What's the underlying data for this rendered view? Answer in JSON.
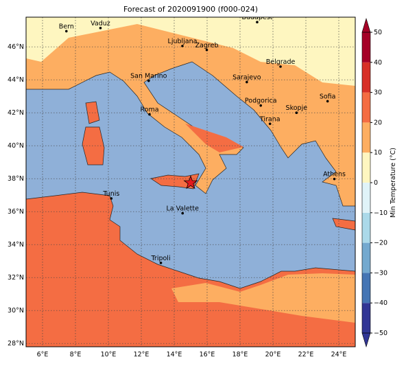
{
  "map": {
    "title": "Forecast of 2020091900 (f000-024)",
    "xlim": [
      5,
      25
    ],
    "ylim": [
      27.8,
      47.8
    ],
    "xticks": [
      {
        "value": 6,
        "label": "6°E"
      },
      {
        "value": 8,
        "label": "8°E"
      },
      {
        "value": 10,
        "label": "10°E"
      },
      {
        "value": 12,
        "label": "12°E"
      },
      {
        "value": 14,
        "label": "14°E"
      },
      {
        "value": 16,
        "label": "16°E"
      },
      {
        "value": 18,
        "label": "18°E"
      },
      {
        "value": 20,
        "label": "20°E"
      },
      {
        "value": 22,
        "label": "22°E"
      },
      {
        "value": 24,
        "label": "24°E"
      }
    ],
    "yticks": [
      {
        "value": 28,
        "label": "28°N"
      },
      {
        "value": 30,
        "label": "30°N"
      },
      {
        "value": 32,
        "label": "32°N"
      },
      {
        "value": 34,
        "label": "34°N"
      },
      {
        "value": 36,
        "label": "36°N"
      },
      {
        "value": 38,
        "label": "38°N"
      },
      {
        "value": 40,
        "label": "40°N"
      },
      {
        "value": 42,
        "label": "42°N"
      },
      {
        "value": 44,
        "label": "44°N"
      },
      {
        "value": 46,
        "label": "46°N"
      }
    ],
    "grid": true,
    "cities": [
      {
        "name": "Bern",
        "lon": 7.45,
        "lat": 46.95
      },
      {
        "name": "Vaduz",
        "lon": 9.52,
        "lat": 47.14
      },
      {
        "name": "Budapest",
        "lon": 19.04,
        "lat": 47.5
      },
      {
        "name": "Ljubljana",
        "lon": 14.5,
        "lat": 46.05
      },
      {
        "name": "Zagreb",
        "lon": 15.98,
        "lat": 45.81
      },
      {
        "name": "Belgrade",
        "lon": 20.46,
        "lat": 44.8
      },
      {
        "name": "San Marino",
        "lon": 12.45,
        "lat": 43.94
      },
      {
        "name": "Sarajevo",
        "lon": 18.41,
        "lat": 43.86
      },
      {
        "name": "Sofia",
        "lon": 23.32,
        "lat": 42.7
      },
      {
        "name": "Podgorica",
        "lon": 19.26,
        "lat": 42.44
      },
      {
        "name": "Skopje",
        "lon": 21.43,
        "lat": 42.0
      },
      {
        "name": "Roma",
        "lon": 12.5,
        "lat": 41.9
      },
      {
        "name": "Tirana",
        "lon": 19.82,
        "lat": 41.33
      },
      {
        "name": "Athens",
        "lon": 23.73,
        "lat": 37.98
      },
      {
        "name": "Tunis",
        "lon": 10.18,
        "lat": 36.8
      },
      {
        "name": "La Valette",
        "lon": 14.51,
        "lat": 35.9
      },
      {
        "name": "Tripoli",
        "lon": 13.19,
        "lat": 32.89
      }
    ],
    "star": {
      "lon": 15.0,
      "lat": 37.75,
      "color": "#e41a1c"
    }
  },
  "colorbar": {
    "label": "Min Temperature (°C)",
    "lim": [
      -50,
      50
    ],
    "ticks": [
      {
        "value": -50,
        "label": "−50"
      },
      {
        "value": -40,
        "label": "−40"
      },
      {
        "value": -30,
        "label": "−30"
      },
      {
        "value": -20,
        "label": "−20"
      },
      {
        "value": -10,
        "label": "−10"
      },
      0,
      10,
      20,
      30,
      40,
      50
    ],
    "colors": [
      "#313695",
      "#4575b4",
      "#74a9cf",
      "#abd9e9",
      "#e0f3f8",
      "#fef6c0",
      "#fdae61",
      "#f46d43",
      "#d73027",
      "#a50026"
    ]
  }
}
